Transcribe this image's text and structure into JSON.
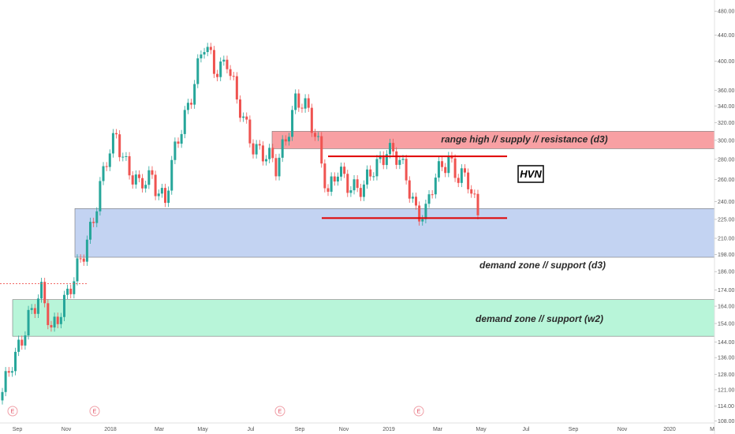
{
  "chart_data": {
    "type": "candlestick",
    "y_scale": "log",
    "ylim": [
      106,
      500
    ],
    "y_ticks": [
      108.0,
      114.0,
      121.0,
      128.0,
      136.0,
      144.0,
      154.0,
      164.0,
      174.0,
      186.0,
      198.0,
      210.0,
      225.0,
      240.0,
      260.0,
      280.0,
      300.0,
      320.0,
      340.0,
      360.0,
      400.0,
      440.0,
      480.0
    ],
    "y_tick_labels": [
      "108.00",
      "114.00",
      "121.00",
      "128.00",
      "136.00",
      "144.00",
      "154.00",
      "164.00",
      "174.00",
      "186.00",
      "198.00",
      "210.00",
      "225.00",
      "240.00",
      "260.00",
      "280.00",
      "300.00",
      "320.00",
      "340.00",
      "360.00",
      "400.00",
      "440.00",
      "480.00"
    ],
    "x_labels": [
      "Sep",
      "Nov",
      "2018",
      "Mar",
      "May",
      "Jul",
      "Sep",
      "Nov",
      "2019",
      "Mar",
      "May",
      "Jul",
      "Sep",
      "Nov",
      "2020",
      "M"
    ],
    "colors": {
      "up": "#26a69a",
      "down": "#ef5350",
      "line": "#e00000",
      "prev_close": "#ef5350"
    },
    "zones": [
      {
        "label": "range high // supply // resistance (d3)",
        "y_low": 291,
        "y_high": 310,
        "color": "#f8a0a3"
      },
      {
        "label": "demand zone // support (d3)",
        "y_low": 196,
        "y_high": 234,
        "color": "#c3d3f2"
      },
      {
        "label": "demand zone // support (w2)",
        "y_low": 147,
        "y_high": 168,
        "color": "#b8f5d9"
      }
    ],
    "lines": [
      {
        "name": "range-top",
        "y": 283
      },
      {
        "name": "range-bottom",
        "y": 226
      }
    ],
    "prev_close_level": 178,
    "annotations": [
      {
        "text": "HVN"
      }
    ],
    "earnings_marker": "E",
    "anchors": [
      [
        0,
        120
      ],
      [
        4,
        135
      ],
      [
        8,
        160
      ],
      [
        12,
        170
      ],
      [
        15,
        150
      ],
      [
        18,
        165
      ],
      [
        22,
        178
      ],
      [
        25,
        200
      ],
      [
        28,
        230
      ],
      [
        32,
        275
      ],
      [
        35,
        305
      ],
      [
        39,
        270
      ],
      [
        42,
        250
      ],
      [
        46,
        265
      ],
      [
        50,
        240
      ],
      [
        54,
        300
      ],
      [
        58,
        360
      ],
      [
        62,
        420
      ],
      [
        65,
        390
      ],
      [
        69,
        405
      ],
      [
        72,
        340
      ],
      [
        76,
        305
      ],
      [
        80,
        285
      ],
      [
        84,
        270
      ],
      [
        86,
        295
      ],
      [
        90,
        345
      ],
      [
        94,
        330
      ],
      [
        97,
        300
      ],
      [
        100,
        245
      ],
      [
        103,
        265
      ],
      [
        107,
        258
      ],
      [
        111,
        250
      ],
      [
        115,
        275
      ],
      [
        118,
        295
      ],
      [
        121,
        280
      ],
      [
        124,
        260
      ],
      [
        127,
        235
      ],
      [
        130,
        230
      ],
      [
        132,
        250
      ],
      [
        135,
        275
      ],
      [
        137,
        285
      ],
      [
        140,
        262
      ],
      [
        143,
        255
      ],
      [
        146,
        232
      ]
    ],
    "ohlc_rule": "close follows the anchor path; open = previous close; wicks extend 1.5% beyond the candle body"
  }
}
